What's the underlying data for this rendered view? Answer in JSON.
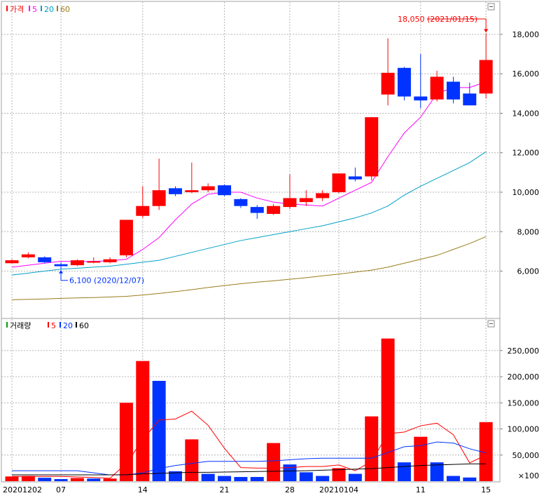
{
  "chart_data": [
    {
      "type": "candlestick",
      "legend": [
        "가격",
        "5",
        "20",
        "60"
      ],
      "legend_colors": [
        "#ff0000",
        "#ff00ff",
        "#00a0c8",
        "#9a7c1c"
      ],
      "up_color": "#ff0000",
      "down_color": "#0033ff",
      "ylim": [
        4100,
        19100
      ],
      "yticks": [
        6000,
        8000,
        10000,
        12000,
        14000,
        16000,
        18000
      ],
      "ytick_labels": [
        "6,000",
        "8,000",
        "10,000",
        "12,000",
        "14,000",
        "16,000",
        "18,000"
      ],
      "candles": [
        {
          "date": "2020-12-02",
          "open": 6400,
          "close": 6550,
          "high": 6600,
          "low": 6400
        },
        {
          "date": "2020-12-03",
          "open": 6700,
          "close": 6850,
          "high": 6950,
          "low": 6650
        },
        {
          "date": "2020-12-04",
          "open": 6700,
          "close": 6450,
          "high": 6750,
          "low": 6400
        },
        {
          "date": "2020-12-07",
          "open": 6350,
          "close": 6250,
          "high": 6450,
          "low": 6100
        },
        {
          "date": "2020-12-08",
          "open": 6300,
          "close": 6550,
          "high": 6600,
          "low": 6250
        },
        {
          "date": "2020-12-09",
          "open": 6500,
          "close": 6500,
          "high": 6700,
          "low": 6400
        },
        {
          "date": "2020-12-10",
          "open": 6450,
          "close": 6600,
          "high": 6700,
          "low": 6400
        },
        {
          "date": "2020-12-11",
          "open": 6800,
          "close": 8600,
          "high": 8600,
          "low": 6700
        },
        {
          "date": "2020-12-14",
          "open": 8800,
          "close": 9300,
          "high": 10300,
          "low": 8700
        },
        {
          "date": "2020-12-15",
          "open": 9300,
          "close": 10100,
          "high": 11700,
          "low": 9100
        },
        {
          "date": "2020-12-16",
          "open": 10200,
          "close": 9900,
          "high": 10300,
          "low": 9800
        },
        {
          "date": "2020-12-17",
          "open": 10000,
          "close": 10100,
          "high": 11500,
          "low": 9950
        },
        {
          "date": "2020-12-18",
          "open": 10100,
          "close": 10300,
          "high": 10450,
          "low": 10000
        },
        {
          "date": "2020-12-21",
          "open": 10350,
          "close": 9850,
          "high": 10400,
          "low": 9800
        },
        {
          "date": "2020-12-22",
          "open": 9650,
          "close": 9300,
          "high": 9700,
          "low": 9200
        },
        {
          "date": "2020-12-23",
          "open": 9250,
          "close": 8950,
          "high": 9350,
          "low": 8650
        },
        {
          "date": "2020-12-24",
          "open": 8900,
          "close": 9300,
          "high": 9400,
          "low": 8850
        },
        {
          "date": "2020-12-28",
          "open": 9250,
          "close": 9700,
          "high": 10900,
          "low": 9150
        },
        {
          "date": "2020-12-29",
          "open": 9500,
          "close": 9700,
          "high": 10100,
          "low": 9300
        },
        {
          "date": "2020-12-30",
          "open": 9700,
          "close": 9950,
          "high": 10100,
          "low": 9550
        },
        {
          "date": "2021-01-04",
          "open": 10000,
          "close": 10950,
          "high": 10950,
          "low": 9950
        },
        {
          "date": "2021-01-05",
          "open": 10800,
          "close": 10650,
          "high": 11250,
          "low": 10550
        },
        {
          "date": "2021-01-06",
          "open": 10800,
          "close": 13800,
          "high": 13800,
          "low": 10600
        },
        {
          "date": "2021-01-07",
          "open": 14950,
          "close": 16050,
          "high": 17800,
          "low": 14400
        },
        {
          "date": "2021-01-08",
          "open": 16300,
          "close": 14850,
          "high": 16350,
          "low": 14650
        },
        {
          "date": "2021-01-11",
          "open": 14850,
          "close": 14650,
          "high": 17000,
          "low": 14250
        },
        {
          "date": "2021-01-12",
          "open": 14700,
          "close": 15850,
          "high": 16150,
          "low": 14600
        },
        {
          "date": "2021-01-13",
          "open": 15600,
          "close": 14700,
          "high": 15850,
          "low": 14500
        },
        {
          "date": "2021-01-14",
          "open": 15000,
          "close": 14400,
          "high": 15550,
          "low": 14400
        },
        {
          "date": "2021-01-15",
          "open": 15000,
          "close": 16700,
          "high": 18050,
          "low": 14750
        }
      ],
      "moving_averages": [
        {
          "period": "5",
          "color": "#ff00ff",
          "values": [
            6200,
            6300,
            6400,
            6500,
            6480,
            6500,
            6520,
            6600,
            7100,
            7700,
            8600,
            9400,
            9900,
            10000,
            10000,
            9700,
            9500,
            9400,
            9350,
            9300,
            9700,
            10100,
            10500,
            11800,
            13000,
            13800,
            15000,
            15300,
            15300,
            15600
          ]
        },
        {
          "period": "20",
          "color": "#00a0c8",
          "values": [
            5800,
            5900,
            6000,
            6100,
            6150,
            6200,
            6250,
            6350,
            6450,
            6550,
            6750,
            6950,
            7150,
            7350,
            7550,
            7700,
            7850,
            8000,
            8150,
            8300,
            8500,
            8700,
            8950,
            9300,
            9850,
            10300,
            10700,
            11100,
            11500,
            12050
          ]
        },
        {
          "period": "60",
          "color": "#9a7c1c",
          "values": [
            4550,
            4570,
            4590,
            4620,
            4640,
            4660,
            4690,
            4720,
            4790,
            4870,
            4960,
            5060,
            5170,
            5270,
            5360,
            5440,
            5510,
            5590,
            5670,
            5760,
            5850,
            5950,
            6050,
            6200,
            6400,
            6600,
            6800,
            7100,
            7400,
            7750
          ]
        }
      ],
      "annotations": [
        {
          "text": "18,050 (2021/01/15)",
          "value": 18050,
          "date": "2021-01-15",
          "color": "#ff0000"
        },
        {
          "text": "6,100 (2020/12/07)",
          "value": 6100,
          "date": "2020-12-07",
          "color": "#0033ff"
        }
      ]
    },
    {
      "type": "bar",
      "legend": [
        "거래량",
        "5",
        "20",
        "60"
      ],
      "legend_colors": [
        "#ff0000",
        "#ff0000",
        "#0033ff",
        "#000000"
      ],
      "unit": "×100",
      "ylim": [
        0,
        290000
      ],
      "yticks": [
        50000,
        100000,
        150000,
        200000,
        250000
      ],
      "ytick_labels": [
        "50,000",
        "100,000",
        "150,000",
        "200,000",
        "250,000"
      ],
      "volumes": [
        9000,
        10000,
        6500,
        4000,
        6000,
        5000,
        5000,
        150000,
        230000,
        192000,
        19000,
        80000,
        14000,
        10000,
        8000,
        8000,
        73000,
        32000,
        17000,
        10000,
        25000,
        14000,
        124000,
        273000,
        36000,
        85000,
        36000,
        10000,
        7000,
        113000
      ],
      "volume_up": [
        true,
        true,
        false,
        false,
        true,
        false,
        true,
        true,
        true,
        false,
        false,
        true,
        false,
        false,
        false,
        false,
        true,
        false,
        false,
        false,
        true,
        false,
        true,
        true,
        false,
        true,
        false,
        false,
        false,
        true
      ],
      "moving_averages": [
        {
          "period": "5",
          "color": "#ff0000",
          "values": [
            9000,
            9000,
            9000,
            9000,
            8000,
            7000,
            5500,
            34000,
            79000,
            117000,
            119000,
            134000,
            107000,
            63000,
            26000,
            25000,
            25000,
            26000,
            28000,
            28000,
            31000,
            20000,
            38000,
            91000,
            94000,
            106000,
            111000,
            89000,
            35000,
            50000
          ]
        },
        {
          "period": "20",
          "color": "#0033ff",
          "values": [
            20000,
            20000,
            20000,
            20000,
            20000,
            16000,
            12000,
            12000,
            16000,
            24000,
            30000,
            34000,
            38000,
            38000,
            38000,
            38000,
            39000,
            41000,
            43000,
            44000,
            44000,
            44000,
            44000,
            55000,
            66000,
            68000,
            75000,
            73000,
            62000,
            54000
          ]
        },
        {
          "period": "60",
          "color": "#000000",
          "values": [
            12000,
            12000,
            12000,
            12000,
            12000,
            12000,
            12000,
            12500,
            14000,
            15000,
            16000,
            17000,
            17000,
            17500,
            18000,
            18500,
            19000,
            19500,
            20000,
            21000,
            22000,
            23000,
            24000,
            26000,
            28000,
            30000,
            31000,
            32000,
            33000,
            33000
          ]
        }
      ]
    }
  ],
  "xaxis_labels": [
    {
      "index": 0,
      "label": "20201202"
    },
    {
      "index": 3,
      "label": "07"
    },
    {
      "index": 8,
      "label": "14"
    },
    {
      "index": 13,
      "label": "21"
    },
    {
      "index": 17,
      "label": "28"
    },
    {
      "index": 20,
      "label": "20210104"
    },
    {
      "index": 25,
      "label": "11"
    },
    {
      "index": 29,
      "label": "15"
    }
  ]
}
